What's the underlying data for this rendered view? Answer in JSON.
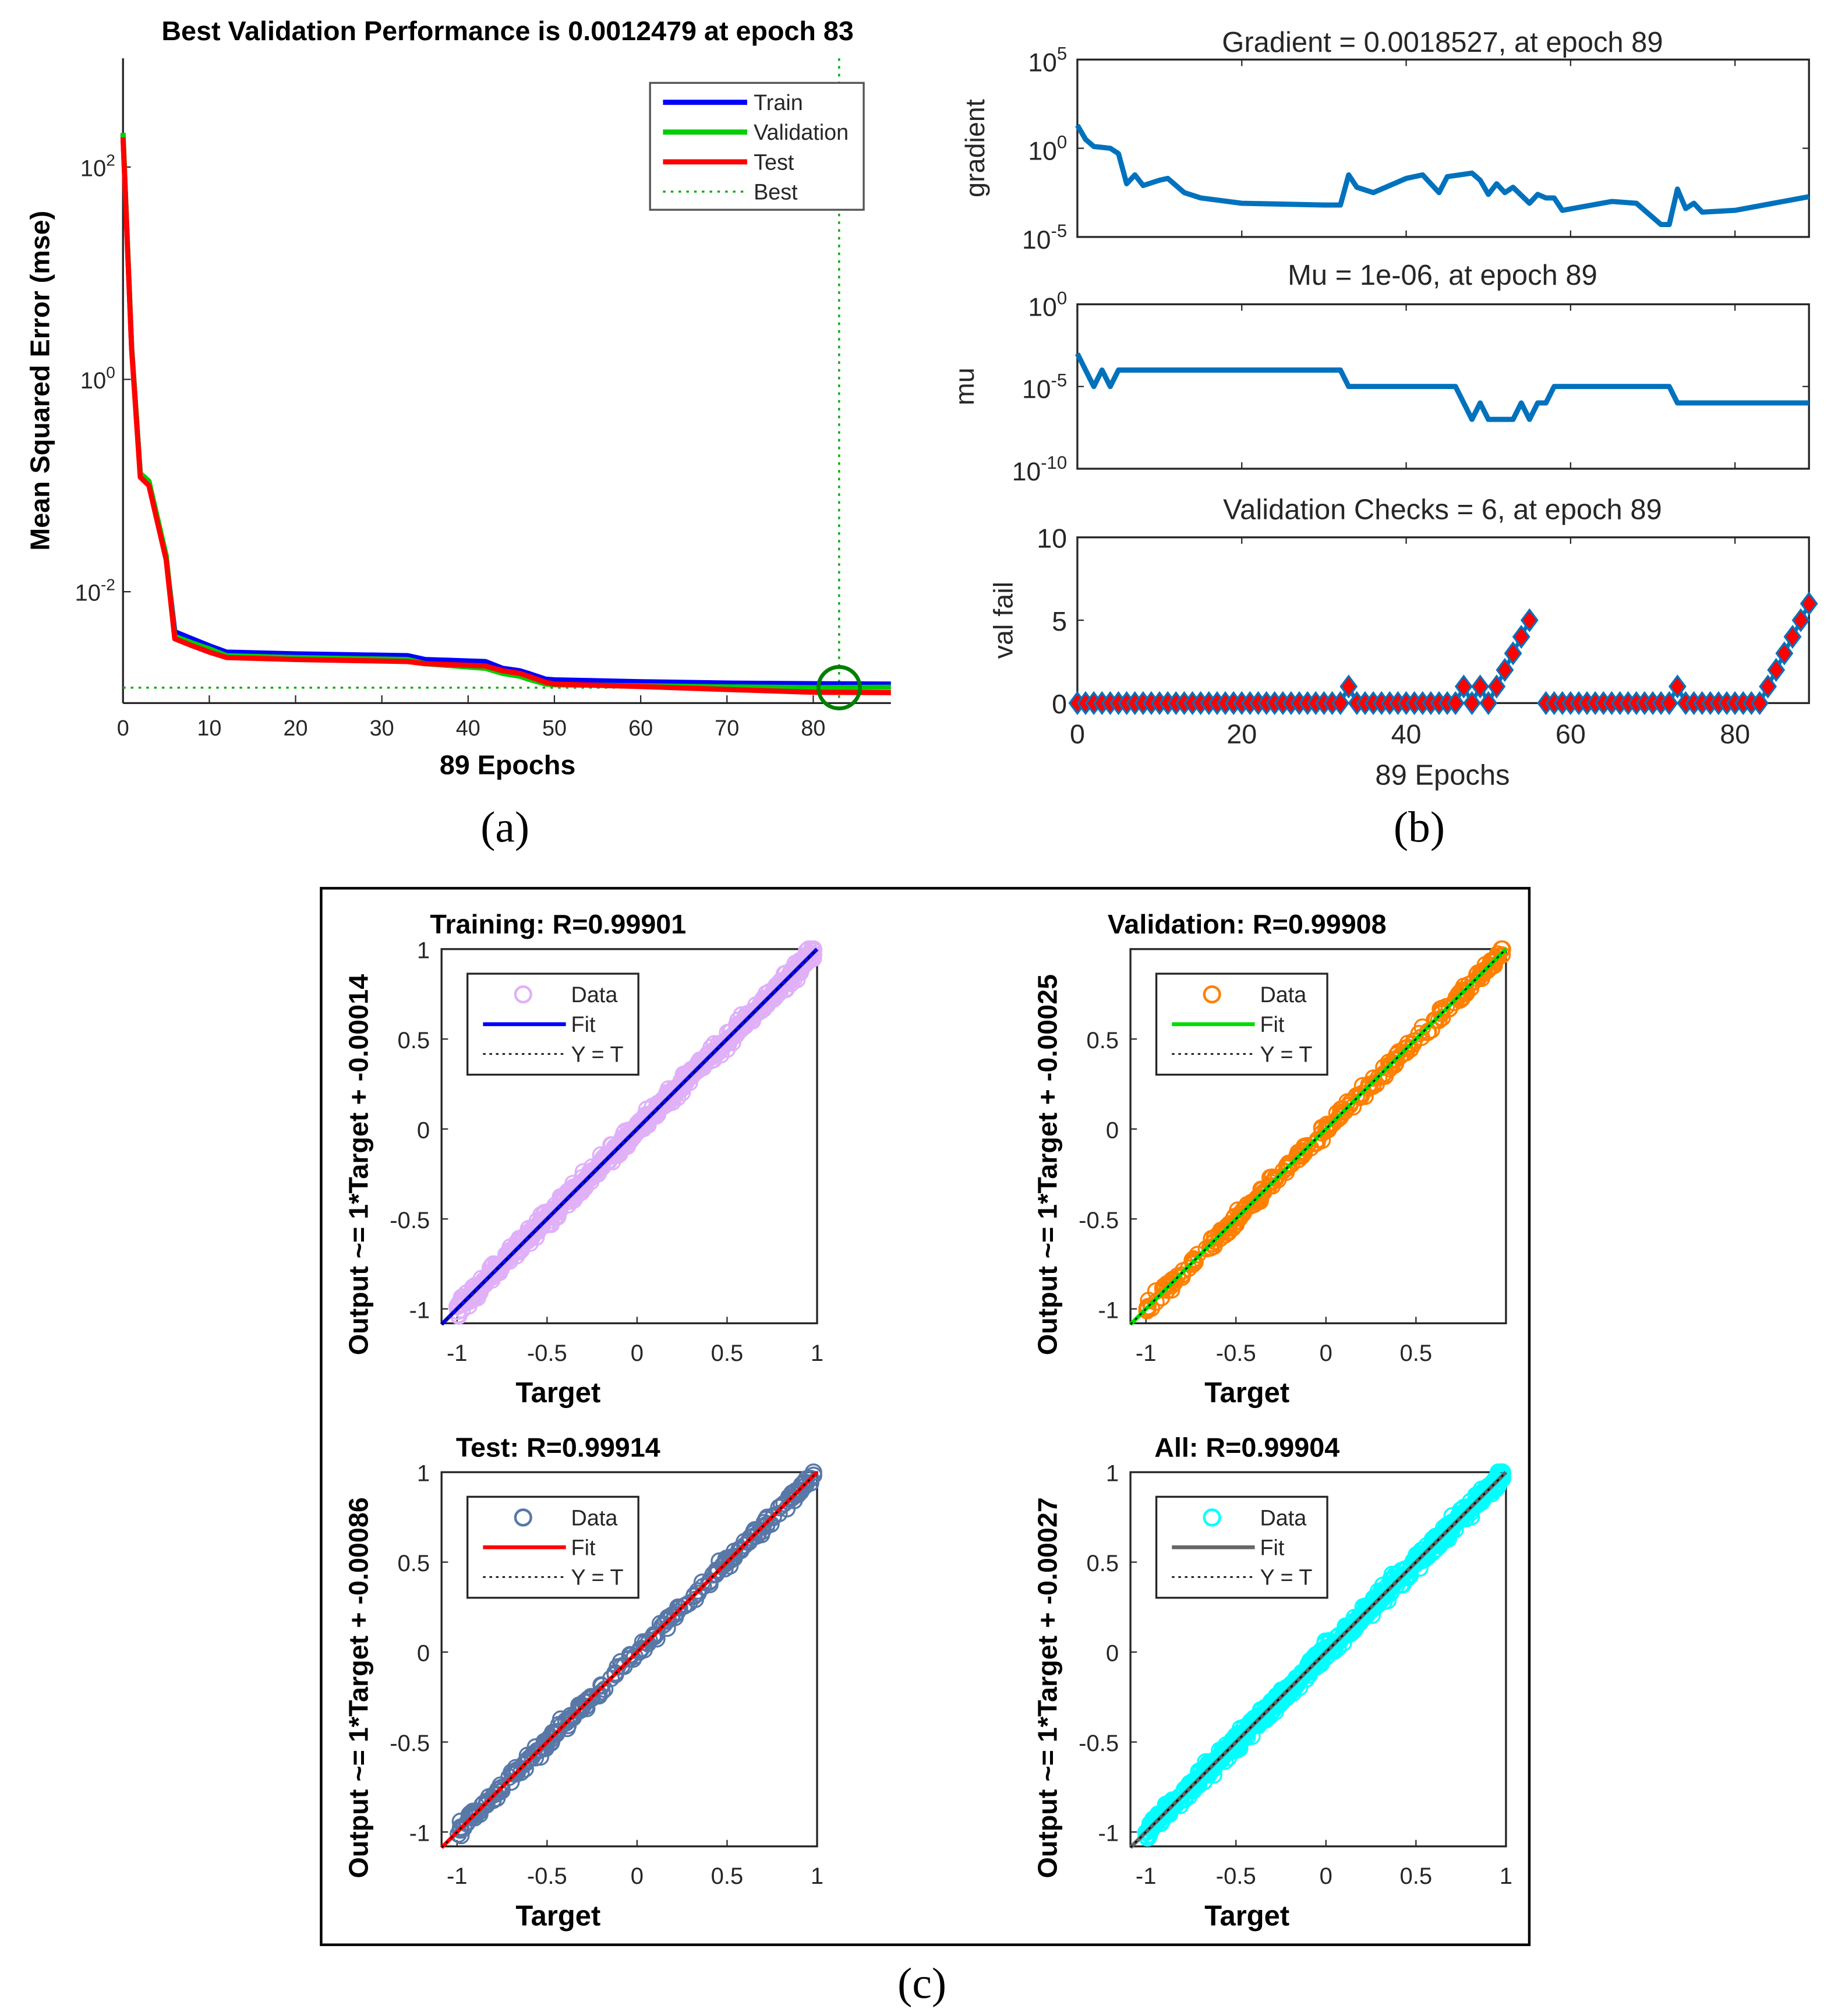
{
  "captions": {
    "a": "(a)",
    "b": "(b)",
    "c": "(c)"
  },
  "chart_data": [
    {
      "id": "performance",
      "type": "line",
      "title": "Best Validation Performance is 0.0012479 at epoch 83",
      "xlabel": "89 Epochs",
      "ylabel": "Mean Squared Error  (mse)",
      "yscale": "log",
      "xlim": [
        0,
        89
      ],
      "ylim": [
        0.0009,
        1100
      ],
      "xticks": [
        0,
        10,
        20,
        30,
        40,
        50,
        60,
        70,
        80
      ],
      "yticks": [
        {
          "base": "10",
          "exp": "2",
          "value": 100
        },
        {
          "base": "10",
          "exp": "0",
          "value": 1
        },
        {
          "base": "10",
          "exp": "-2",
          "value": 0.01
        }
      ],
      "legend": {
        "position": "top-right",
        "entries": [
          "Train",
          "Validation",
          "Test",
          "Best"
        ]
      },
      "best": {
        "epoch": 83,
        "value": 0.0012479
      },
      "series": [
        {
          "name": "Train",
          "color": "#0000ff",
          "x": [
            0,
            1,
            2,
            3,
            5,
            6,
            8,
            10,
            12,
            20,
            33,
            35,
            42,
            44,
            46,
            47,
            49,
            50,
            60,
            70,
            80,
            89
          ],
          "y": [
            200,
            2,
            0.13,
            0.11,
            0.021,
            0.0042,
            0.0036,
            0.0031,
            0.0027,
            0.0026,
            0.0025,
            0.0023,
            0.0022,
            0.0019,
            0.0018,
            0.0017,
            0.0015,
            0.00148,
            0.00142,
            0.00138,
            0.00136,
            0.00135
          ]
        },
        {
          "name": "Validation",
          "color": "#00cc00",
          "x": [
            0,
            1,
            2,
            3,
            5,
            6,
            8,
            10,
            12,
            20,
            33,
            35,
            42,
            44,
            46,
            47,
            49,
            50,
            60,
            70,
            80,
            89
          ],
          "y": [
            210,
            2,
            0.13,
            0.11,
            0.022,
            0.0038,
            0.0033,
            0.0029,
            0.0025,
            0.0024,
            0.0023,
            0.0021,
            0.0019,
            0.0017,
            0.0016,
            0.0015,
            0.00135,
            0.00133,
            0.0013,
            0.00127,
            0.00125,
            0.00126
          ]
        },
        {
          "name": "Test",
          "color": "#ff0000",
          "x": [
            0,
            1,
            2,
            3,
            5,
            6,
            8,
            10,
            12,
            20,
            33,
            35,
            42,
            44,
            46,
            47,
            49,
            50,
            60,
            70,
            80,
            89
          ],
          "y": [
            190,
            1.9,
            0.12,
            0.1,
            0.02,
            0.0036,
            0.0031,
            0.0027,
            0.0024,
            0.0023,
            0.0022,
            0.0021,
            0.002,
            0.0018,
            0.0017,
            0.0016,
            0.0014,
            0.00135,
            0.00128,
            0.0012,
            0.00113,
            0.00112
          ]
        }
      ]
    },
    {
      "id": "gradient",
      "type": "line",
      "title": "Gradient = 0.0018527, at epoch 89",
      "ylabel": "gradient",
      "yscale": "log",
      "xlim": [
        0,
        89
      ],
      "ylim_log10": [
        -5,
        5
      ],
      "yticks": [
        {
          "base": "10",
          "exp": "5",
          "log": 5
        },
        {
          "base": "10",
          "exp": "0",
          "log": 0
        },
        {
          "base": "10",
          "exp": "-5",
          "log": -5
        }
      ],
      "color": "#0072bd",
      "x": [
        0,
        1,
        2,
        4,
        5,
        6,
        7,
        8,
        10,
        11,
        13,
        15,
        20,
        30,
        32,
        33,
        34,
        36,
        40,
        42,
        44,
        45,
        48,
        49,
        50,
        51,
        52,
        53,
        55,
        56,
        57,
        58,
        59,
        65,
        68,
        71,
        72,
        73,
        74,
        75,
        76,
        80,
        89
      ],
      "y_log10": [
        1.3,
        0.5,
        0.1,
        0,
        -0.3,
        -2.0,
        -1.5,
        -2.1,
        -1.8,
        -1.7,
        -2.5,
        -2.8,
        -3.1,
        -3.2,
        -3.2,
        -1.5,
        -2.2,
        -2.5,
        -1.7,
        -1.5,
        -2.5,
        -1.6,
        -1.4,
        -1.8,
        -2.6,
        -2.0,
        -2.5,
        -2.2,
        -3.1,
        -2.6,
        -2.8,
        -2.8,
        -3.5,
        -3.0,
        -3.1,
        -4.3,
        -4.3,
        -2.3,
        -3.4,
        -3.1,
        -3.6,
        -3.5,
        -2.73
      ]
    },
    {
      "id": "mu",
      "type": "line",
      "title": "Mu = 1e-06, at epoch 89",
      "ylabel": "mu",
      "yscale": "log",
      "xlim": [
        0,
        89
      ],
      "ylim_log10": [
        -10,
        0
      ],
      "yticks": [
        {
          "base": "10",
          "exp": "0",
          "log": 0
        },
        {
          "base": "10",
          "exp": "-5",
          "log": -5
        },
        {
          "base": "10",
          "exp": "-10",
          "log": -10
        }
      ],
      "color": "#0072bd",
      "x": [
        0,
        1,
        2,
        3,
        4,
        5,
        32,
        33,
        46,
        48,
        49,
        50,
        53,
        54,
        55,
        56,
        57,
        58,
        72,
        73,
        89
      ],
      "y_log10": [
        -3,
        -4,
        -5,
        -4,
        -5,
        -4,
        -4,
        -5,
        -5,
        -7,
        -6,
        -7,
        -7,
        -6,
        -7,
        -6,
        -6,
        -5,
        -5,
        -6,
        -6
      ]
    },
    {
      "id": "validation-checks",
      "type": "line",
      "title": "Validation Checks = 6, at epoch 89",
      "xlabel": "89 Epochs",
      "ylabel": "val fail",
      "xlim": [
        0,
        89
      ],
      "ylim": [
        0,
        10
      ],
      "xticks": [
        0,
        20,
        40,
        60,
        80
      ],
      "yticks": [
        0,
        5,
        10
      ],
      "color": "#0072bd",
      "marker_color": "#ff0000",
      "segments": [
        {
          "x_start": 0,
          "y": [
            0,
            0,
            0,
            0,
            0,
            0,
            0,
            0,
            0,
            0,
            0,
            0,
            0,
            0,
            0,
            0,
            0,
            0,
            0,
            0,
            0,
            0,
            0,
            0,
            0,
            0,
            0,
            0,
            0,
            0,
            0,
            0,
            0,
            1,
            0,
            0,
            0,
            0,
            0,
            0,
            0,
            0,
            0,
            0,
            0,
            0,
            0,
            1,
            0,
            1,
            0,
            1,
            2,
            3,
            4,
            5
          ]
        },
        {
          "x_start": 57,
          "y": [
            0,
            0,
            0,
            0,
            0,
            0,
            0,
            0,
            0,
            0,
            0,
            0,
            0,
            0,
            0,
            0,
            1,
            0,
            0,
            0,
            0,
            0,
            0,
            0,
            0,
            0,
            0,
            1,
            2,
            3,
            4,
            5,
            6
          ]
        }
      ]
    },
    {
      "id": "regression-training",
      "type": "scatter",
      "title": "Training: R=0.99901",
      "xlabel": "Target",
      "ylabel": "Output ~= 1*Target + -0.00014",
      "slope": 1,
      "intercept": -0.00014,
      "R": 0.99901,
      "xlim": [
        -1.086,
        1.0
      ],
      "ylim": [
        -1.08,
        1.0
      ],
      "xticks": [
        "-1",
        "-0.5",
        "0",
        "0.5",
        "1"
      ],
      "yticks": [
        "1",
        "0.5",
        "0",
        "-0.5",
        "-1"
      ],
      "legend": {
        "position": "top-left",
        "entries": [
          "Data",
          "Fit",
          "Y = T"
        ]
      },
      "data_color": "#e0b0f8",
      "fit_color": "#0000ff",
      "noise": 0.045
    },
    {
      "id": "regression-validation",
      "type": "scatter",
      "title": "Validation: R=0.99908",
      "xlabel": "Target",
      "ylabel": "Output ~= 1*Target + -0.00025",
      "slope": 1,
      "intercept": -0.00025,
      "R": 0.99908,
      "xlim": [
        -1.086,
        1.0
      ],
      "ylim": [
        -1.08,
        1.0
      ],
      "xticks": [
        "-1",
        "-0.5",
        "0",
        "0.5"
      ],
      "yticks": [
        "0.5",
        "0",
        "-0.5",
        "-1"
      ],
      "legend": {
        "position": "top-left",
        "entries": [
          "Data",
          "Fit",
          "Y = T"
        ]
      },
      "data_color": "#ff7f00",
      "fit_color": "#00dd00",
      "noise": 0.035
    },
    {
      "id": "regression-test",
      "type": "scatter",
      "title": "Test: R=0.99914",
      "xlabel": "Target",
      "ylabel": "Output ~= 1*Target + -0.00086",
      "slope": 1,
      "intercept": -0.00086,
      "R": 0.99914,
      "xlim": [
        -1.086,
        1.0
      ],
      "ylim": [
        -1.08,
        1.0
      ],
      "xticks": [
        "-1",
        "-0.5",
        "0",
        "0.5",
        "1"
      ],
      "yticks": [
        "1",
        "0.5",
        "0",
        "-0.5",
        "-1"
      ],
      "legend": {
        "position": "top-left",
        "entries": [
          "Data",
          "Fit",
          "Y = T"
        ]
      },
      "data_color": "#5878a8",
      "fit_color": "#ff0000",
      "noise": 0.035
    },
    {
      "id": "regression-all",
      "type": "scatter",
      "title": "All: R=0.99904",
      "xlabel": "Target",
      "ylabel": "Output ~= 1*Target + -0.00027",
      "slope": 1,
      "intercept": -0.00027,
      "R": 0.99904,
      "xlim": [
        -1.086,
        1.0
      ],
      "ylim": [
        -1.08,
        1.0
      ],
      "xticks": [
        "-1",
        "-0.5",
        "0",
        "0.5",
        "1"
      ],
      "yticks": [
        "1",
        "0.5",
        "0",
        "-0.5",
        "-1"
      ],
      "legend": {
        "position": "top-left",
        "entries": [
          "Data",
          "Fit",
          "Y = T"
        ]
      },
      "data_color": "#00ffff",
      "fit_color": "#666666",
      "noise": 0.045
    }
  ]
}
